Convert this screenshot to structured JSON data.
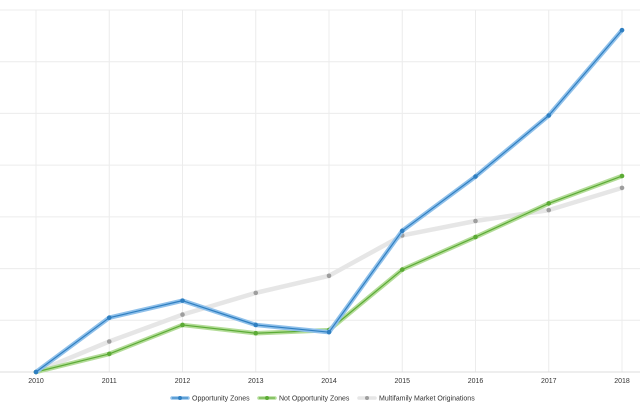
{
  "chart_data": {
    "type": "line",
    "title": "",
    "xlabel": "",
    "ylabel": "",
    "x": [
      "2010",
      "2011",
      "2012",
      "2013",
      "2014",
      "2015",
      "2016",
      "2017",
      "2018"
    ],
    "ylim": [
      0,
      7
    ],
    "grid": true,
    "legend_position": "bottom",
    "series": [
      {
        "name": "Opportunity Zones",
        "color": "#2f7fc1",
        "halo_color": "#8fc0ea",
        "values": [
          0.0,
          1.05,
          1.38,
          0.91,
          0.77,
          2.73,
          3.78,
          4.96,
          6.61
        ]
      },
      {
        "name": "Not Opportunity Zones",
        "color": "#5cab36",
        "halo_color": "#b3dc98",
        "values": [
          0.0,
          0.35,
          0.91,
          0.75,
          0.81,
          1.98,
          2.61,
          3.26,
          3.79
        ]
      },
      {
        "name": "Multifamily Market Originations",
        "color": "#9e9e9e",
        "halo_color": "#e6e6e6",
        "values": [
          0.0,
          0.59,
          1.11,
          1.53,
          1.86,
          2.64,
          2.92,
          3.13,
          3.56
        ]
      }
    ]
  }
}
